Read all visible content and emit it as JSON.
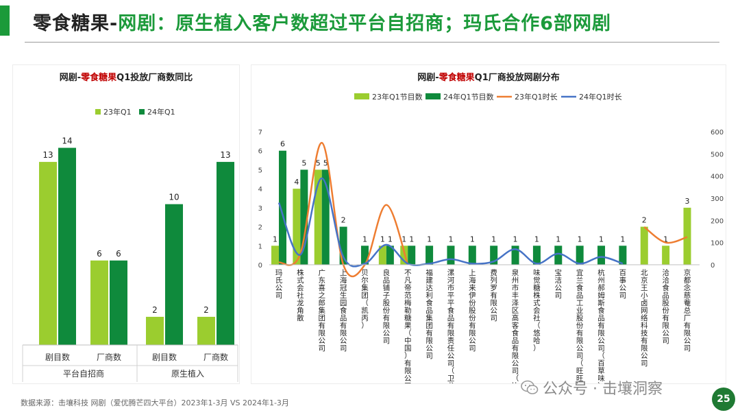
{
  "header": {
    "title_part1": "零食糖果-",
    "title_part2": "网剧：原生植入客户数超过平台自招商；玛氏合作6部网剧"
  },
  "colors": {
    "green_light": "#9bcd2f",
    "green_dark": "#0f8a3c",
    "line_orange": "#ee7d31",
    "line_blue": "#4673c6",
    "title_red": "#c00000",
    "accent": "#1b9a3a"
  },
  "chart_data": [
    {
      "type": "bar",
      "title_part1": "网剧-",
      "title_part2": "零食糖果",
      "title_part3": "Q1投放厂商数同比",
      "legend_position": "top",
      "categories": [
        "剧目数",
        "厂商数",
        "剧目数",
        "厂商数"
      ],
      "groups": [
        {
          "label": "平台自招商",
          "categories": [
            "剧目数",
            "厂商数"
          ]
        },
        {
          "label": "原生植入",
          "categories": [
            "剧目数",
            "厂商数"
          ]
        }
      ],
      "series": [
        {
          "name": "23年Q1",
          "values": [
            13,
            6,
            2,
            2
          ]
        },
        {
          "name": "24年Q1",
          "values": [
            14,
            6,
            10,
            13
          ]
        }
      ],
      "ylim": [
        0,
        15
      ],
      "grid": false
    },
    {
      "type": "bar",
      "title_part1": "网剧-",
      "title_part2": "零食糖果",
      "title_part3": "Q1厂商投放网剧分布",
      "legend_position": "top",
      "categories": [
        "玛氏公司",
        "株式会社龙角散",
        "广东喜之郎集团有限公司",
        "上海冠生园食品有限公司",
        "贝尔集团（凯丙）",
        "良品铺子股份有限公司",
        "不凡帝范梅勒糖果（中国）有限公司（曼妥思）",
        "福建达利食品集团有限公司",
        "漯河市平平食品有限责任公司（卫龙）",
        "上海来伊份股份有限公司",
        "费列罗有限公司",
        "泉州市丰泽区高客食品有限公司（比比赞）",
        "味觉糖株式会社（悠哈）",
        "宝洁公司",
        "宜兰食品工业股份有限公司（旺旺）",
        "杭州郝姆斯食品有限公司（百草味）",
        "百事公司",
        "北京王小卤网络科技有限公司",
        "洽洽食品股份有限公司",
        "京都念慈菴总厂有限公司"
      ],
      "series": [
        {
          "name": "23年Q1节目数",
          "kind": "bar",
          "axis": "left",
          "values": [
            1,
            4,
            5,
            null,
            null,
            1,
            1,
            null,
            null,
            null,
            null,
            null,
            null,
            null,
            null,
            null,
            null,
            2,
            1,
            3
          ]
        },
        {
          "name": "24年Q1节目数",
          "kind": "bar",
          "axis": "left",
          "values": [
            6,
            5,
            5,
            2,
            1,
            1,
            1,
            1,
            1,
            1,
            1,
            1,
            1,
            1,
            1,
            1,
            1,
            null,
            null,
            null
          ]
        },
        {
          "name": "23年Q1时长",
          "kind": "line",
          "axis": "right",
          "values": [
            10,
            50,
            550,
            0,
            0,
            270,
            0,
            null,
            null,
            null,
            null,
            null,
            null,
            null,
            null,
            null,
            null,
            170,
            100,
            125
          ]
        },
        {
          "name": "24年Q1时长",
          "kind": "line",
          "axis": "right",
          "values": [
            280,
            45,
            390,
            35,
            5,
            90,
            5,
            5,
            25,
            5,
            15,
            70,
            5,
            50,
            5,
            35,
            5,
            null,
            null,
            null
          ]
        }
      ],
      "y_left": {
        "min": 0,
        "max": 7,
        "ticks": [
          0,
          1,
          2,
          3,
          4,
          5,
          6,
          7
        ]
      },
      "y_right": {
        "min": 0,
        "max": 600,
        "ticks": [
          0,
          100,
          200,
          300,
          400,
          500,
          600
        ]
      },
      "grid": false
    }
  ],
  "footer": {
    "source": "数据来源：击壤科技   网剧（爱优腾芒四大平台）2023年1-3月 VS 2024年1-3月"
  },
  "watermark": {
    "text": "公众号 · 击壤洞察",
    "icon": "wechat-icon"
  },
  "page_number": "25"
}
